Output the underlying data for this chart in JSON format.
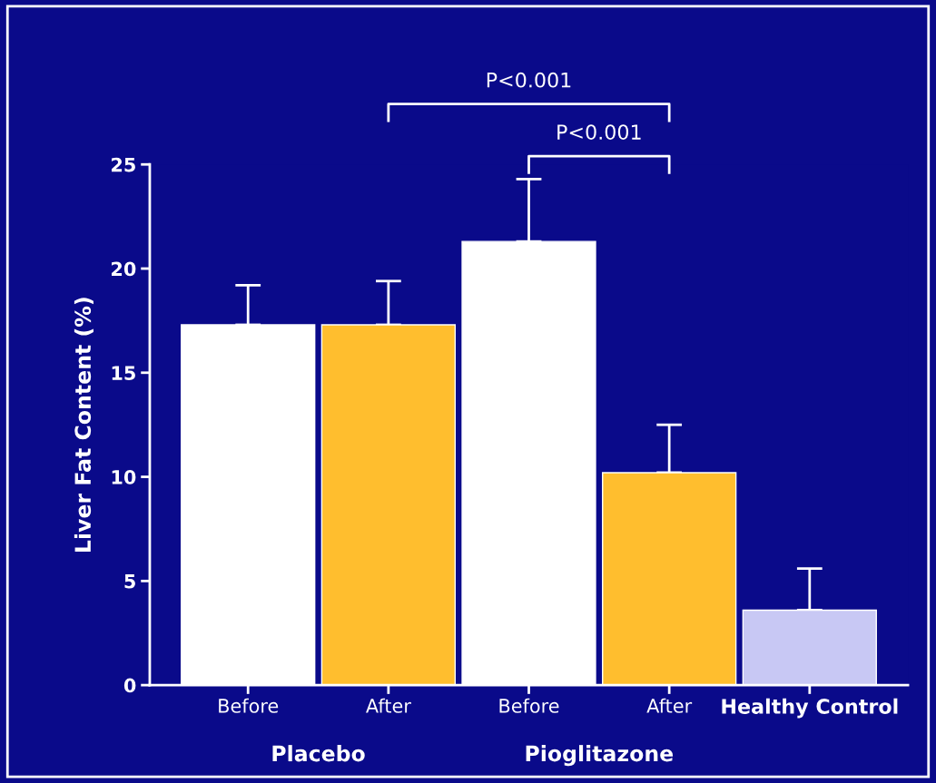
{
  "chart_data": {
    "type": "bar",
    "ylabel": "Liver Fat Content (%)",
    "categories": [
      "Before",
      "After",
      "Before",
      "After",
      "Healthy Control"
    ],
    "values": [
      17.3,
      17.3,
      21.3,
      10.2,
      3.6
    ],
    "colors": [
      "#ffffff",
      "#ffbe2e",
      "#ffffff",
      "#ffbe2e",
      "#c8c8f4"
    ],
    "errors": [
      [
        17.3,
        19.2
      ],
      [
        17.3,
        19.4
      ],
      [
        21.3,
        24.3
      ],
      [
        10.2,
        12.5
      ],
      [
        3.6,
        5.6
      ]
    ],
    "ylim": [
      0,
      25
    ],
    "yticks": [
      0,
      5,
      10,
      15,
      20,
      25
    ],
    "grid": false,
    "legend": false,
    "annotations": [
      "Placebo",
      "Pioglitazone",
      "P<0.001",
      "P<0.001"
    ]
  }
}
